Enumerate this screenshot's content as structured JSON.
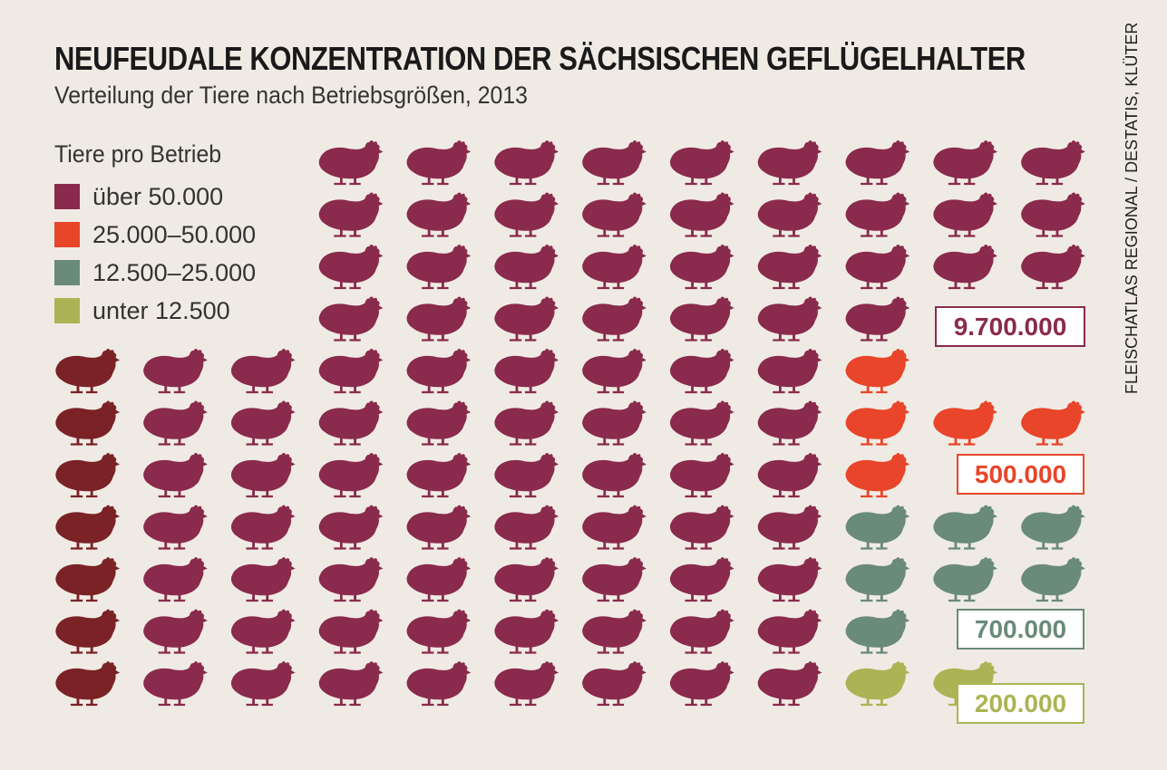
{
  "title": "NEUFEUDALE KONZENTRATION DER SÄCHSISCHEN GEFLÜGELHALTER",
  "subtitle": "Verteilung der Tiere nach Betriebsgrößen, 2013",
  "source": "FLEISCHATLAS REGIONAL / DESTATIS, KLÜTER",
  "chart_data": {
    "type": "pictogram",
    "legend_title": "Tiere pro Betrieb",
    "legend": [
      {
        "label": "über 50.000",
        "color": "#8a2a4c"
      },
      {
        "label": "25.000–50.000",
        "color": "#e8452a"
      },
      {
        "label": "12.500–25.000",
        "color": "#6a8a7a"
      },
      {
        "label": "unter 12.500",
        "color": "#aab454"
      }
    ],
    "highlight_color": "#7a2226",
    "series": [
      {
        "name": "über 50.000",
        "total": "9.700.000",
        "icons": 97,
        "color": "#8a2a4c"
      },
      {
        "name": "25.000–50.000",
        "total": "500.000",
        "icons": 5,
        "color": "#e8452a"
      },
      {
        "name": "12.500–25.000",
        "total": "700.000",
        "icons": 7,
        "color": "#6a8a7a"
      },
      {
        "name": "unter 12.500",
        "total": "200.000",
        "icons": 2,
        "color": "#aab454"
      }
    ]
  }
}
